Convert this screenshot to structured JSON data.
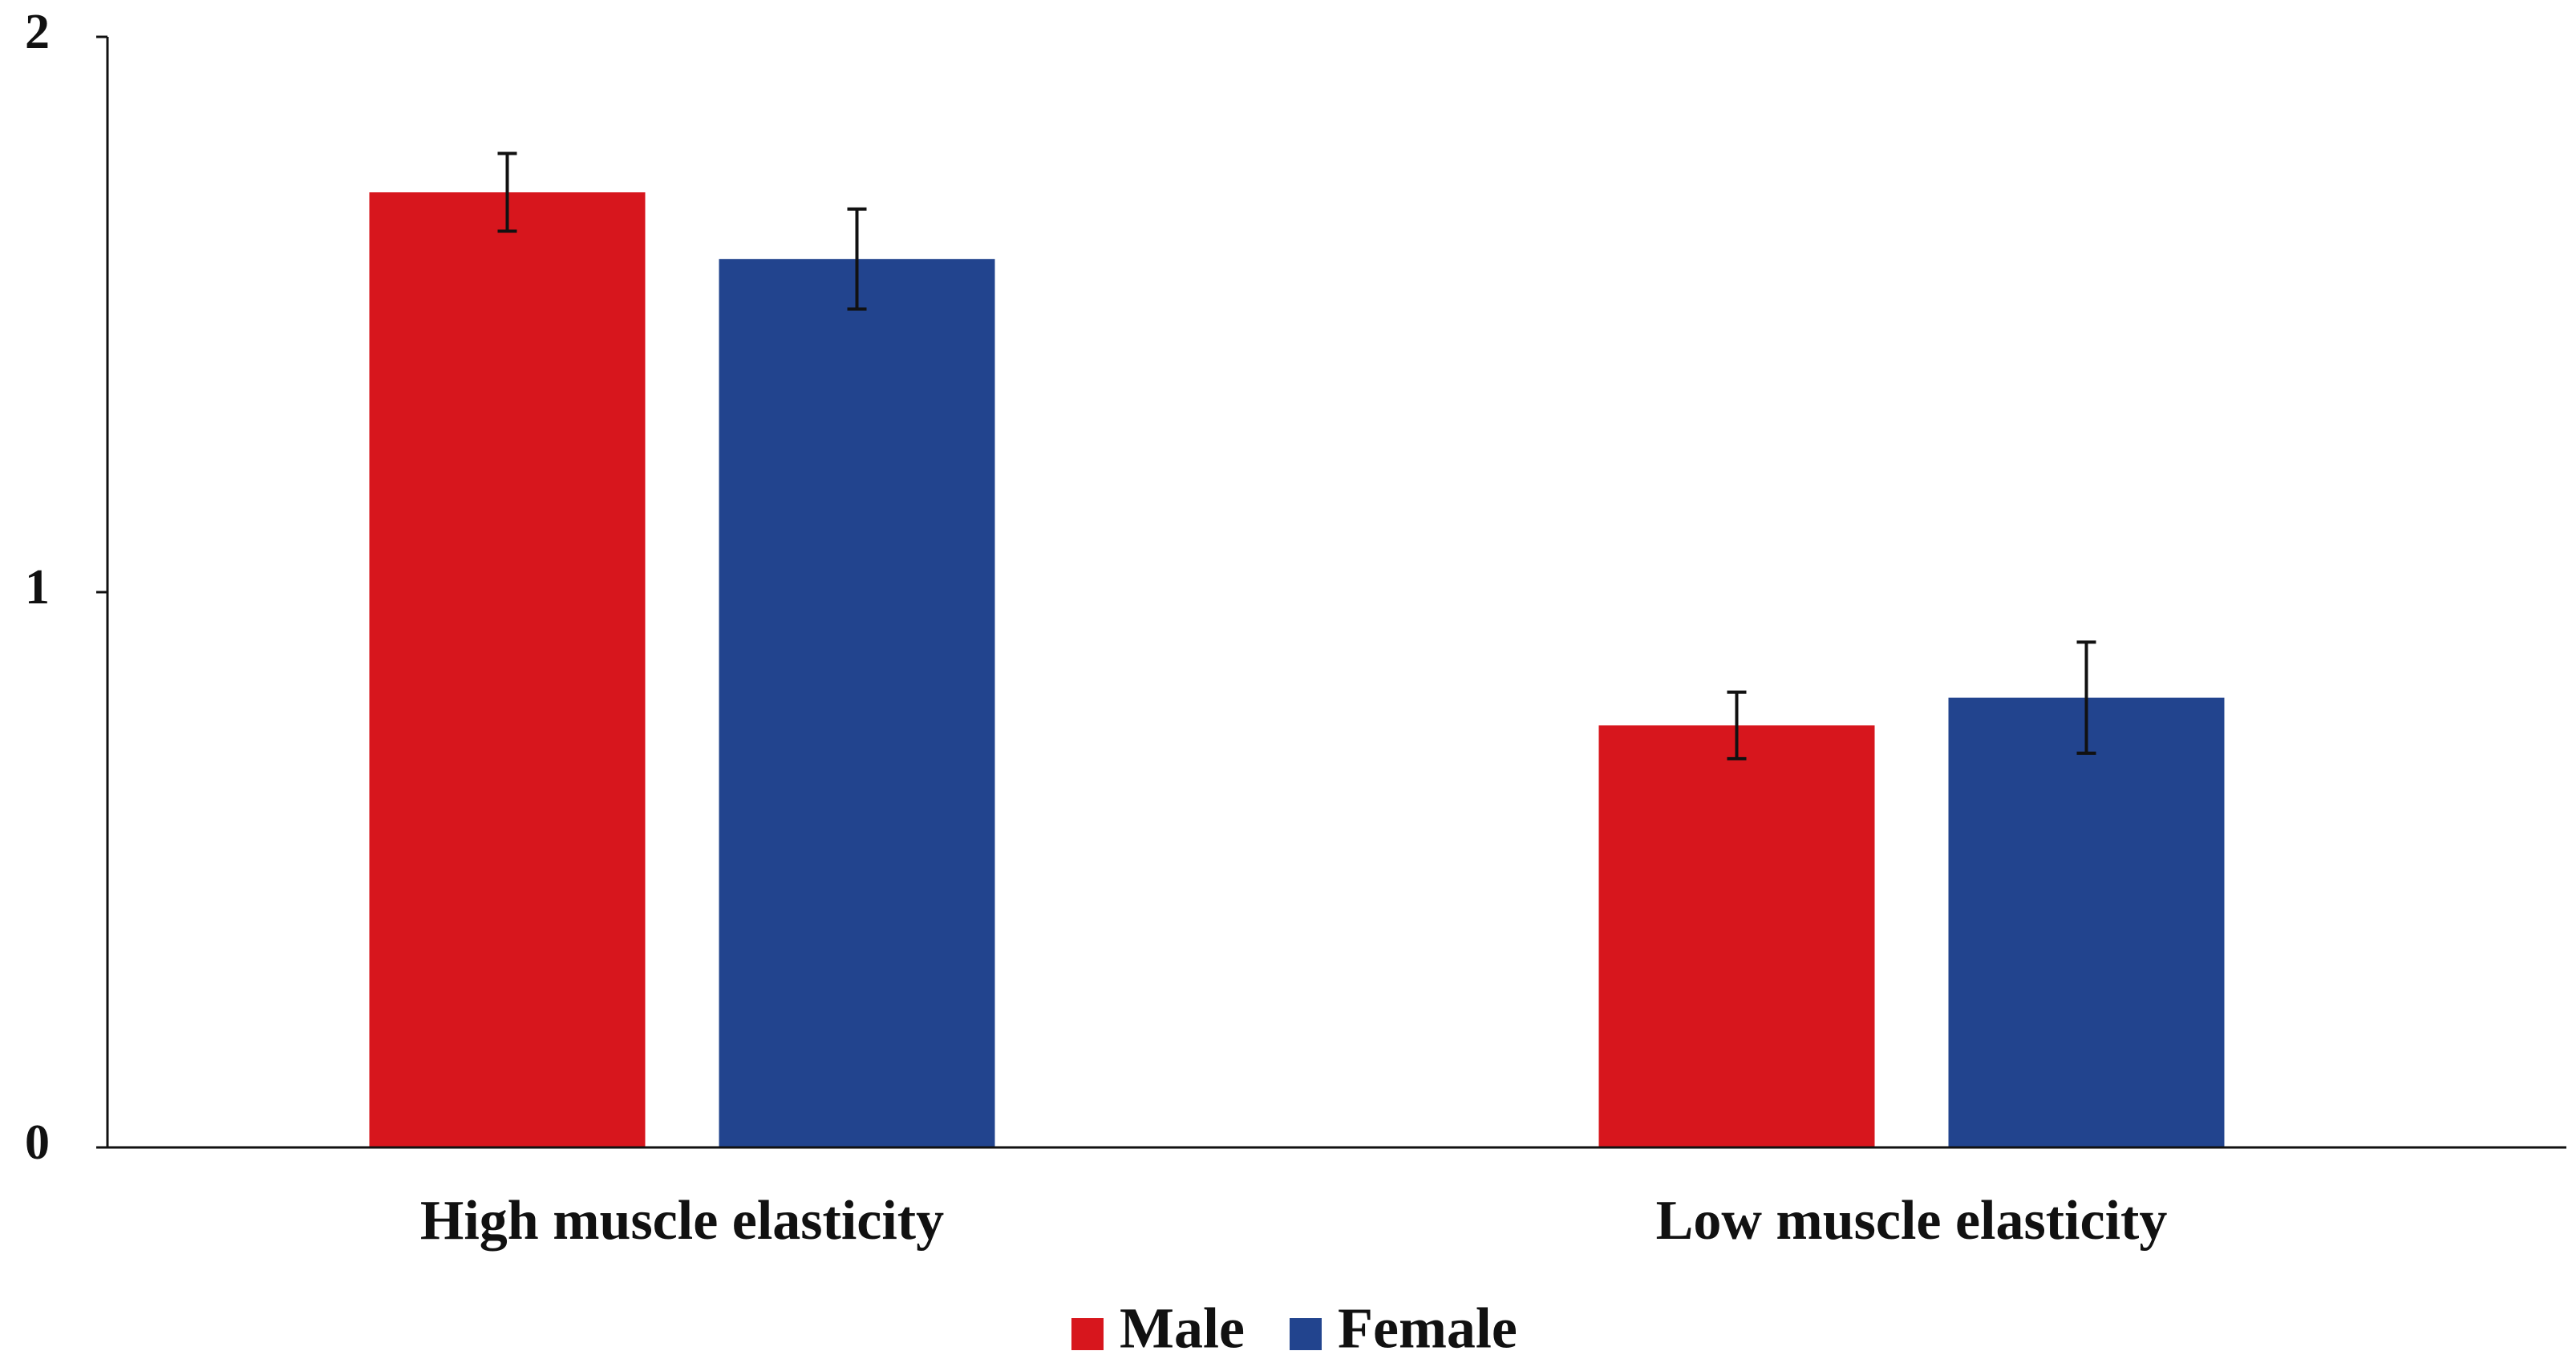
{
  "chart_data": {
    "type": "bar",
    "title": "",
    "xlabel": "",
    "ylabel": "",
    "categories": [
      "High muscle elasticity",
      "Low muscle elasticity"
    ],
    "series": [
      {
        "name": "Male",
        "color": "#d7161d",
        "values": [
          1.72,
          0.76
        ],
        "errors": [
          0.07,
          0.06
        ]
      },
      {
        "name": "Female",
        "color": "#22448e",
        "values": [
          1.6,
          0.81
        ],
        "errors": [
          0.09,
          0.1
        ]
      }
    ],
    "ylim": [
      0,
      2
    ],
    "yticks": [
      0,
      1,
      2
    ],
    "ytick_labels": [
      "0",
      "1",
      "2"
    ],
    "grid": false,
    "legend_position": "bottom-center"
  }
}
